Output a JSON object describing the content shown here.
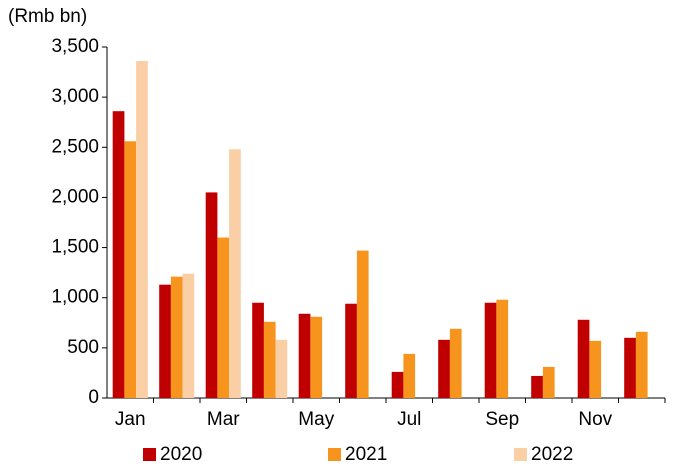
{
  "chart_data": {
    "type": "bar",
    "ylabel": "(Rmb bn)",
    "categories": [
      "Jan",
      null,
      "Mar",
      null,
      "May",
      null,
      "Jul",
      null,
      "Sep",
      null,
      "Nov",
      null
    ],
    "series": [
      {
        "name": "2020",
        "color": "#c00000",
        "values": [
          2860,
          1130,
          2050,
          950,
          840,
          940,
          260,
          580,
          950,
          220,
          780,
          600
        ]
      },
      {
        "name": "2021",
        "color": "#f7941d",
        "values": [
          2560,
          1210,
          1600,
          760,
          810,
          1470,
          440,
          690,
          980,
          310,
          570,
          660
        ]
      },
      {
        "name": "2022",
        "color": "#fbcfa5",
        "values": [
          3360,
          1240,
          2480,
          580,
          null,
          null,
          null,
          null,
          null,
          null,
          null,
          null
        ]
      }
    ],
    "ylim": [
      0,
      3500
    ],
    "yticks": [
      0,
      500,
      {
        "value": 1000,
        "label": "1,000"
      },
      {
        "value": 1500,
        "label": "1,500"
      },
      {
        "value": 2000,
        "label": "2,000"
      },
      {
        "value": 2500,
        "label": "2,500"
      },
      {
        "value": 3000,
        "label": "3,000"
      },
      {
        "value": 3500,
        "label": "3,500"
      }
    ],
    "grid": false,
    "legend": "bottom"
  }
}
